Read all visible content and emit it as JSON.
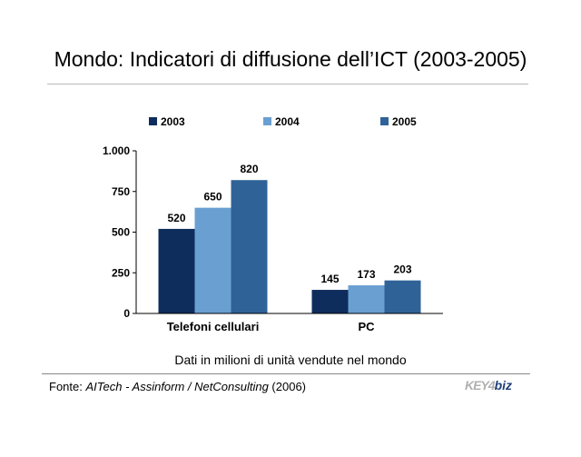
{
  "page": {
    "title": "Mondo: Indicatori di diffusione dell’ICT (2003-2005)",
    "subtitle": "Dati in milioni di unità vendute nel mondo",
    "source": {
      "prefix": "Fonte: ",
      "italic": "AITech - Assinform / NetConsulting",
      "suffix": " (2006)"
    },
    "logo": {
      "part1": "KEY4",
      "part2": "biz"
    }
  },
  "colors": {
    "2003": "#0f2d5c",
    "2004": "#6a9fd2",
    "2005": "#2f6398"
  },
  "chart_data": {
    "type": "bar",
    "categories": [
      "Telefoni cellulari",
      "PC"
    ],
    "series": [
      {
        "name": "2003",
        "values": [
          520,
          145
        ]
      },
      {
        "name": "2004",
        "values": [
          650,
          173
        ]
      },
      {
        "name": "2005",
        "values": [
          820,
          203
        ]
      }
    ],
    "ylim": [
      0,
      1000
    ],
    "yticks": [
      0,
      250,
      500,
      750,
      1000
    ],
    "ytick_labels": [
      "0",
      "250",
      "500",
      "750",
      "1.000"
    ],
    "grid": false,
    "legend": "top",
    "data_labels": true
  }
}
